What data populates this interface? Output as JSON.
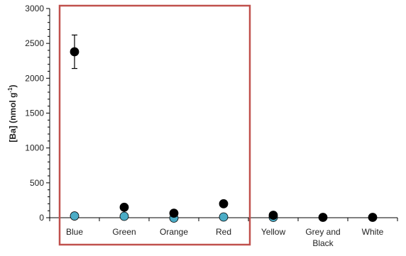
{
  "chart_data": {
    "type": "scatter",
    "categories": [
      "Blue",
      "Green",
      "Orange",
      "Red",
      "Yellow",
      "Grey and Black",
      "White"
    ],
    "category_lines": [
      [
        "Blue"
      ],
      [
        "Green"
      ],
      [
        "Orange"
      ],
      [
        "Red"
      ],
      [
        "Yellow"
      ],
      [
        "Grey and",
        "Black"
      ],
      [
        "White"
      ]
    ],
    "ylabel_main": "[Ba] (nmol g",
    "ylabel_sup": "-1",
    "ylabel_close": ")",
    "ylim": [
      0,
      3000
    ],
    "yticks": [
      0,
      500,
      1000,
      1500,
      2000,
      2500,
      3000
    ],
    "grid": false,
    "series": [
      {
        "color": "#000000",
        "values": [
          2380,
          150,
          65,
          200,
          35,
          5,
          5
        ],
        "errors": [
          240,
          null,
          null,
          null,
          null,
          null,
          null
        ]
      },
      {
        "color": "#4BACC6",
        "values": [
          25,
          20,
          -5,
          10,
          5,
          null,
          null
        ]
      }
    ],
    "highlight_box": {
      "from_category": "Blue",
      "to_category": "Red",
      "color": "#C0504D"
    }
  }
}
